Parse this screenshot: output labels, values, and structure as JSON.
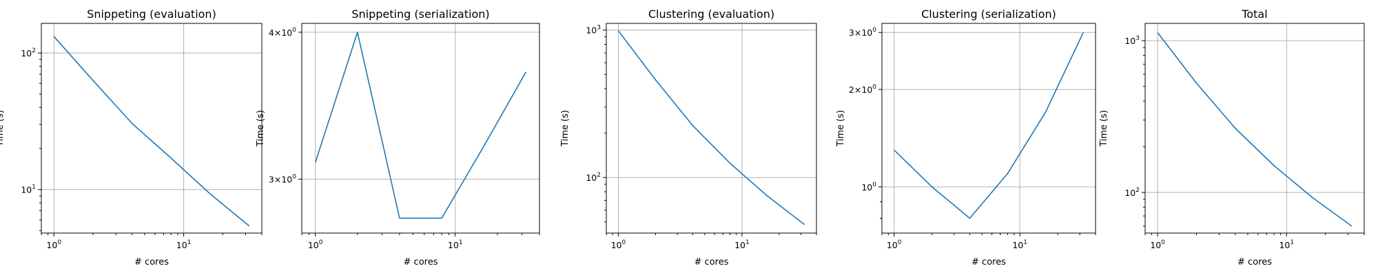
{
  "chart_data": [
    {
      "type": "line",
      "title": "Snippeting (evaluation)",
      "xlabel": "# cores",
      "ylabel": "Time (s)",
      "xscale": "log",
      "yscale": "log",
      "xlim": [
        0.8,
        40
      ],
      "ylim": [
        4.8,
        165
      ],
      "grid": true,
      "x": [
        1,
        2,
        4,
        8,
        16,
        32
      ],
      "series": [
        {
          "values": [
            132,
            63,
            30.5,
            17,
            9.3,
            5.4
          ]
        }
      ],
      "xticks": [
        {
          "value": 1,
          "base": "10",
          "exp": "0"
        },
        {
          "value": 10,
          "base": "10",
          "exp": "1"
        }
      ],
      "yticks": [
        {
          "value": 10,
          "base": "10",
          "exp": "1"
        },
        {
          "value": 100,
          "base": "10",
          "exp": "2"
        }
      ]
    },
    {
      "type": "line",
      "title": "Snippeting (serialization)",
      "xlabel": "# cores",
      "ylabel": "Time (s)",
      "xscale": "log",
      "yscale": "log",
      "xlim": [
        0.8,
        40
      ],
      "ylim": [
        2.7,
        4.07
      ],
      "grid": true,
      "x": [
        1,
        2,
        4,
        8,
        16,
        32
      ],
      "series": [
        {
          "values": [
            3.1,
            4.0,
            2.78,
            2.78,
            3.2,
            3.7
          ]
        }
      ],
      "xticks": [
        {
          "value": 1,
          "base": "10",
          "exp": "0"
        },
        {
          "value": 10,
          "base": "10",
          "exp": "1"
        }
      ],
      "yticks": [
        {
          "value": 3,
          "base": "3×10",
          "exp": "0"
        },
        {
          "value": 4,
          "base": "4×10",
          "exp": "0"
        }
      ]
    },
    {
      "type": "line",
      "title": "Clustering (evaluation)",
      "xlabel": "# cores",
      "ylabel": "Time (s)",
      "xscale": "log",
      "yscale": "log",
      "xlim": [
        0.8,
        40
      ],
      "ylim": [
        42,
        1110
      ],
      "grid": true,
      "x": [
        1,
        2,
        4,
        8,
        16,
        32
      ],
      "series": [
        {
          "values": [
            990,
            460,
            225,
            125,
            75,
            48
          ]
        }
      ],
      "xticks": [
        {
          "value": 1,
          "base": "10",
          "exp": "0"
        },
        {
          "value": 10,
          "base": "10",
          "exp": "1"
        }
      ],
      "yticks": [
        {
          "value": 100,
          "base": "10",
          "exp": "2"
        },
        {
          "value": 1000,
          "base": "10",
          "exp": "3"
        }
      ]
    },
    {
      "type": "line",
      "title": "Clustering (serialization)",
      "xlabel": "# cores",
      "ylabel": "Time (s)",
      "xscale": "log",
      "yscale": "log",
      "xlim": [
        0.8,
        40
      ],
      "ylim": [
        0.72,
        3.2
      ],
      "grid": true,
      "x": [
        1,
        2,
        4,
        8,
        16,
        32
      ],
      "series": [
        {
          "values": [
            1.3,
            1.0,
            0.8,
            1.1,
            1.7,
            3.0
          ]
        }
      ],
      "xticks": [
        {
          "value": 1,
          "base": "10",
          "exp": "0"
        },
        {
          "value": 10,
          "base": "10",
          "exp": "1"
        }
      ],
      "yticks": [
        {
          "value": 1,
          "base": "10",
          "exp": "0"
        },
        {
          "value": 2,
          "base": "2×10",
          "exp": "0"
        },
        {
          "value": 3,
          "base": "3×10",
          "exp": "0"
        }
      ]
    },
    {
      "type": "line",
      "title": "Total",
      "xlabel": "# cores",
      "ylabel": "Time (s)",
      "xscale": "log",
      "yscale": "log",
      "xlim": [
        0.8,
        40
      ],
      "ylim": [
        54,
        1300
      ],
      "grid": true,
      "x": [
        1,
        2,
        4,
        8,
        16,
        32
      ],
      "series": [
        {
          "values": [
            1130,
            525,
            265,
            150,
            92,
            60
          ]
        }
      ],
      "xticks": [
        {
          "value": 1,
          "base": "10",
          "exp": "0"
        },
        {
          "value": 10,
          "base": "10",
          "exp": "1"
        }
      ],
      "yticks": [
        {
          "value": 100,
          "base": "10",
          "exp": "2"
        },
        {
          "value": 1000,
          "base": "10",
          "exp": "3"
        }
      ]
    }
  ],
  "colors": {
    "line": "#1f77b4"
  }
}
